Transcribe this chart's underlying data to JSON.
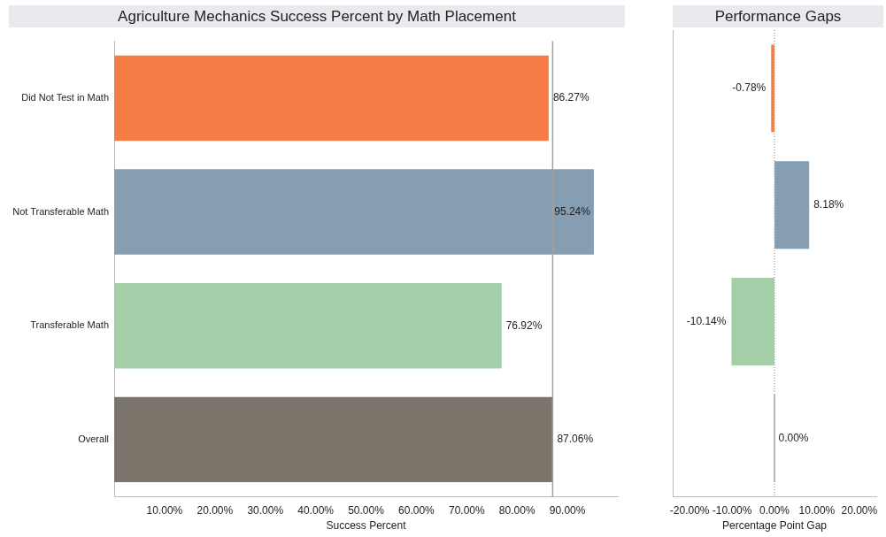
{
  "chart_data": [
    {
      "type": "bar",
      "orientation": "horizontal",
      "title": "Agriculture Mechanics Success Percent by Math Placement",
      "xlabel": "Success Percent",
      "categories": [
        "Did Not Test in Math",
        "Not Transferable Math",
        "Transferable Math",
        "Overall"
      ],
      "values": [
        86.27,
        95.24,
        76.92,
        87.06
      ],
      "colors": [
        "#f57d45",
        "#869eb1",
        "#a3cfa9",
        "#7b746b"
      ],
      "value_labels": [
        "86.27%",
        "95.24%",
        "76.92%",
        "87.06%"
      ],
      "xlim": [
        0,
        100
      ],
      "xticks": [
        {
          "value": 10,
          "label": "10.00%"
        },
        {
          "value": 20,
          "label": "20.00%"
        },
        {
          "value": 30,
          "label": "30.00%"
        },
        {
          "value": 40,
          "label": "40.00%"
        },
        {
          "value": 50,
          "label": "50.00%"
        },
        {
          "value": 60,
          "label": "60.00%"
        },
        {
          "value": 70,
          "label": "70.00%"
        },
        {
          "value": 80,
          "label": "80.00%"
        },
        {
          "value": 90,
          "label": "90.00%"
        }
      ],
      "ref_lines": [
        {
          "axis": "x",
          "value": 87.06,
          "color": "#a0a0a0",
          "line_style": "solid"
        }
      ],
      "grid": false,
      "legend": false
    },
    {
      "type": "bar",
      "orientation": "horizontal",
      "title": "Performance Gaps",
      "xlabel": "Percentage Point Gap",
      "categories": [
        null,
        null,
        null,
        null
      ],
      "values": [
        -0.78,
        8.18,
        -10.14,
        0
      ],
      "colors": [
        "#f57d45",
        "#869eb1",
        "#a3cfa9",
        "#7b746b"
      ],
      "value_labels": [
        "-0.78%",
        "8.18%",
        "-10.14%",
        "0.00%"
      ],
      "xlim": [
        -24,
        24
      ],
      "xticks": [
        {
          "value": -20,
          "label": "-20.00%"
        },
        {
          "value": -10,
          "label": "-10.00%"
        },
        {
          "value": 0,
          "label": "0.00%"
        },
        {
          "value": 10,
          "label": "10.00%"
        },
        {
          "value": 20,
          "label": "20.00%"
        }
      ],
      "ref_lines": [
        {
          "axis": "x",
          "value": 0,
          "color": "#b0b0b0",
          "line_style": "dotted"
        }
      ],
      "tick_labels": "x",
      "grid": false,
      "legend": false
    }
  ]
}
